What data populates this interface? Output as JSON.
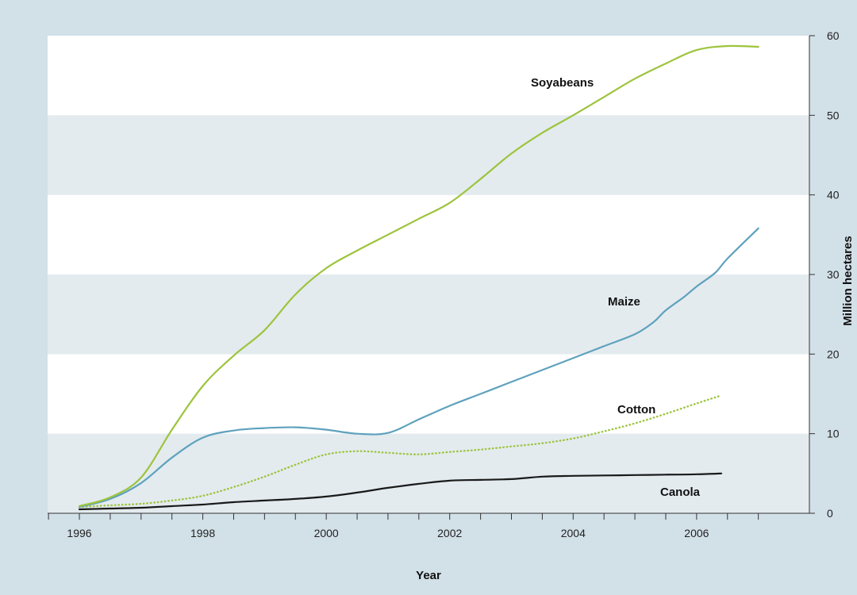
{
  "chart_data": {
    "type": "line",
    "title": "",
    "xlabel": "Year",
    "ylabel": "Million hectares",
    "xlim": [
      1996,
      2007.3
    ],
    "ylim": [
      0,
      60
    ],
    "x_ticks": [
      1996,
      1998,
      2000,
      2002,
      2004,
      2006
    ],
    "x_tick_labels": [
      "1996",
      "1998",
      "2000",
      "2002",
      "2004",
      "2006"
    ],
    "y_ticks": [
      0,
      10,
      20,
      30,
      40,
      50,
      60
    ],
    "y_tick_labels": [
      "0",
      "10",
      "20",
      "30",
      "40",
      "50",
      "60"
    ],
    "y_axis_side": "right",
    "grid": "alternating horizontal bands",
    "legend": "none (inline labels)",
    "colors": {
      "background": "#d2e0e8",
      "band_light": "#ffffff",
      "band_shaded": "#e3ebef"
    },
    "series": [
      {
        "name": "Soyabeans",
        "color": "#9dc43c",
        "style": "solid",
        "points": [
          [
            1996.0,
            0.9
          ],
          [
            1996.5,
            2.0
          ],
          [
            1997.0,
            4.5
          ],
          [
            1997.5,
            10.5
          ],
          [
            1998.0,
            16.0
          ],
          [
            1998.5,
            19.8
          ],
          [
            1999.0,
            23.0
          ],
          [
            1999.5,
            27.5
          ],
          [
            2000.0,
            30.8
          ],
          [
            2000.5,
            33.0
          ],
          [
            2001.0,
            35.0
          ],
          [
            2001.5,
            37.0
          ],
          [
            2002.0,
            39.0
          ],
          [
            2002.5,
            42.0
          ],
          [
            2003.0,
            45.2
          ],
          [
            2003.5,
            47.8
          ],
          [
            2004.0,
            50.0
          ],
          [
            2004.5,
            52.3
          ],
          [
            2005.0,
            54.6
          ],
          [
            2005.5,
            56.5
          ],
          [
            2006.0,
            58.2
          ],
          [
            2006.5,
            58.7
          ],
          [
            2007.0,
            58.6
          ]
        ]
      },
      {
        "name": "Maize",
        "color": "#5fa2bd",
        "style": "solid",
        "points": [
          [
            1996.0,
            0.8
          ],
          [
            1996.5,
            1.8
          ],
          [
            1997.0,
            3.8
          ],
          [
            1997.5,
            7.0
          ],
          [
            1998.0,
            9.5
          ],
          [
            1998.5,
            10.4
          ],
          [
            1999.0,
            10.7
          ],
          [
            1999.5,
            10.8
          ],
          [
            2000.0,
            10.5
          ],
          [
            2000.5,
            10.0
          ],
          [
            2001.0,
            10.1
          ],
          [
            2001.5,
            11.8
          ],
          [
            2002.0,
            13.5
          ],
          [
            2002.5,
            15.0
          ],
          [
            2003.0,
            16.5
          ],
          [
            2003.5,
            18.0
          ],
          [
            2004.0,
            19.5
          ],
          [
            2004.5,
            21.0
          ],
          [
            2005.0,
            22.5
          ],
          [
            2005.3,
            24.0
          ],
          [
            2005.5,
            25.5
          ],
          [
            2005.8,
            27.2
          ],
          [
            2006.0,
            28.5
          ],
          [
            2006.3,
            30.2
          ],
          [
            2006.5,
            32.0
          ],
          [
            2007.0,
            35.8
          ]
        ]
      },
      {
        "name": "Cotton",
        "color": "#9dc43c",
        "style": "dotted",
        "points": [
          [
            1996.0,
            0.8
          ],
          [
            1996.5,
            1.0
          ],
          [
            1997.0,
            1.2
          ],
          [
            1997.5,
            1.6
          ],
          [
            1998.0,
            2.2
          ],
          [
            1998.5,
            3.3
          ],
          [
            1999.0,
            4.6
          ],
          [
            1999.5,
            6.1
          ],
          [
            2000.0,
            7.4
          ],
          [
            2000.5,
            7.8
          ],
          [
            2001.0,
            7.6
          ],
          [
            2001.5,
            7.4
          ],
          [
            2002.0,
            7.7
          ],
          [
            2002.5,
            8.0
          ],
          [
            2003.0,
            8.4
          ],
          [
            2003.5,
            8.8
          ],
          [
            2004.0,
            9.4
          ],
          [
            2004.5,
            10.3
          ],
          [
            2005.0,
            11.3
          ],
          [
            2005.5,
            12.5
          ],
          [
            2006.0,
            13.8
          ],
          [
            2006.4,
            14.8
          ]
        ]
      },
      {
        "name": "Canola",
        "color": "#1a1a1a",
        "style": "solid",
        "points": [
          [
            1996.0,
            0.5
          ],
          [
            1996.5,
            0.6
          ],
          [
            1997.0,
            0.7
          ],
          [
            1997.5,
            0.9
          ],
          [
            1998.0,
            1.1
          ],
          [
            1998.5,
            1.4
          ],
          [
            1999.0,
            1.6
          ],
          [
            1999.5,
            1.8
          ],
          [
            2000.0,
            2.1
          ],
          [
            2000.5,
            2.6
          ],
          [
            2001.0,
            3.2
          ],
          [
            2001.5,
            3.7
          ],
          [
            2002.0,
            4.1
          ],
          [
            2002.5,
            4.2
          ],
          [
            2003.0,
            4.3
          ],
          [
            2003.5,
            4.6
          ],
          [
            2004.0,
            4.7
          ],
          [
            2004.5,
            4.75
          ],
          [
            2005.0,
            4.8
          ],
          [
            2005.5,
            4.85
          ],
          [
            2006.0,
            4.9
          ],
          [
            2006.4,
            5.0
          ]
        ]
      }
    ],
    "labels": {
      "soyabeans": "Soyabeans",
      "maize": "Maize",
      "cotton": "Cotton",
      "canola": "Canola"
    }
  }
}
